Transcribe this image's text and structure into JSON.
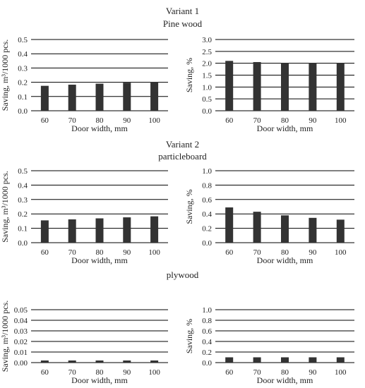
{
  "headings": {
    "v1_variant": "Variant 1",
    "v1_material": "Pine wood",
    "v2_variant": "Variant 2",
    "v2_material": "particleboard",
    "v3_material": "plywood"
  },
  "chart_data": [
    {
      "type": "bar",
      "title": "",
      "categories": [
        "60",
        "70",
        "80",
        "90",
        "100"
      ],
      "values": [
        0.175,
        0.183,
        0.19,
        0.197,
        0.2
      ],
      "xlabel": "Door width, mm",
      "ylabel": "Saving, m³/1000 pcs.",
      "ylim": [
        0,
        0.5
      ],
      "yticks": [
        "0.0",
        "0.1",
        "0.2",
        "0.3",
        "0.4",
        "0.5"
      ],
      "grid": true,
      "bar_color": "#333333"
    },
    {
      "type": "bar",
      "title": "",
      "categories": [
        "60",
        "70",
        "80",
        "90",
        "100"
      ],
      "values": [
        2.1,
        2.05,
        2.02,
        2.0,
        2.0
      ],
      "xlabel": "Door width, mm",
      "ylabel": "Saving, %",
      "ylim": [
        0,
        3.0
      ],
      "yticks": [
        "0.0",
        "0.5",
        "1.0",
        "1.5",
        "2.0",
        "2.5",
        "3.0"
      ],
      "grid": true,
      "bar_color": "#333333"
    },
    {
      "type": "bar",
      "title": "",
      "categories": [
        "60",
        "70",
        "80",
        "90",
        "100"
      ],
      "values": [
        0.155,
        0.162,
        0.169,
        0.176,
        0.183
      ],
      "xlabel": "Door width, mm",
      "ylabel": "Saving, m³/1000 pcs.",
      "ylim": [
        0,
        0.5
      ],
      "yticks": [
        "0.0",
        "0.1",
        "0.2",
        "0.3",
        "0.4",
        "0.5"
      ],
      "grid": true,
      "bar_color": "#333333"
    },
    {
      "type": "bar",
      "title": "",
      "categories": [
        "60",
        "70",
        "80",
        "90",
        "100"
      ],
      "values": [
        0.49,
        0.43,
        0.38,
        0.345,
        0.32
      ],
      "xlabel": "Door width, mm",
      "ylabel": "Saving, %",
      "ylim": [
        0,
        1.0
      ],
      "yticks": [
        "0.0",
        "0.2",
        "0.4",
        "0.6",
        "0.8",
        "1.0"
      ],
      "grid": true,
      "bar_color": "#333333"
    },
    {
      "type": "bar",
      "title": "",
      "categories": [
        "60",
        "70",
        "80",
        "90",
        "100"
      ],
      "values": [
        0.002,
        0.002,
        0.002,
        0.002,
        0.002
      ],
      "xlabel": "Door width, mm",
      "ylabel": "Saving, m³/1000 pcs.",
      "ylim": [
        0,
        0.05
      ],
      "yticks": [
        "0.00",
        "0.01",
        "0.02",
        "0.03",
        "0.04",
        "0.05"
      ],
      "grid": true,
      "bar_color": "#333333"
    },
    {
      "type": "bar",
      "title": "",
      "categories": [
        "60",
        "70",
        "80",
        "90",
        "100"
      ],
      "values": [
        0.1,
        0.1,
        0.1,
        0.1,
        0.1
      ],
      "xlabel": "Door width, mm",
      "ylabel": "Saving, %",
      "ylim": [
        0,
        1.0
      ],
      "yticks": [
        "0.0",
        "0.2",
        "0.4",
        "0.6",
        "0.8",
        "1.0"
      ],
      "grid": true,
      "bar_color": "#333333"
    }
  ]
}
